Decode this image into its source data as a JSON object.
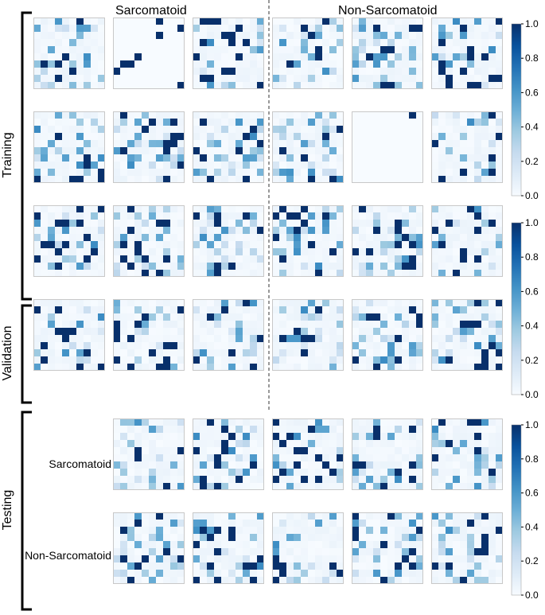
{
  "figure": {
    "column_groups": [
      "Sarcomatoid",
      "Non-Sarcomatoid"
    ],
    "sections": [
      "Training",
      "Validation",
      "Testing"
    ],
    "testing_rows": [
      "Sarcomatoid",
      "Non-Sarcomatoid"
    ]
  },
  "chart_data": {
    "type": "heatmap",
    "cell_grid": [
      10,
      10
    ],
    "colormap": "Blues",
    "colorbar": {
      "range": [
        0.0,
        1.0
      ],
      "ticks": [
        "0.0",
        "0.2",
        "0.4",
        "0.6",
        "0.8",
        "1.0"
      ]
    },
    "panels": [
      {
        "section": "Training",
        "column_group": "Sarcomatoid",
        "count": 9
      },
      {
        "section": "Training",
        "column_group": "Non-Sarcomatoid",
        "count": 9
      },
      {
        "section": "Validation",
        "column_group": "Sarcomatoid",
        "count": 3
      },
      {
        "section": "Validation",
        "column_group": "Non-Sarcomatoid",
        "count": 3
      },
      {
        "section": "Testing",
        "row": "Sarcomatoid",
        "count": 5
      },
      {
        "section": "Testing",
        "row": "Non-Sarcomatoid",
        "count": 5
      }
    ]
  }
}
